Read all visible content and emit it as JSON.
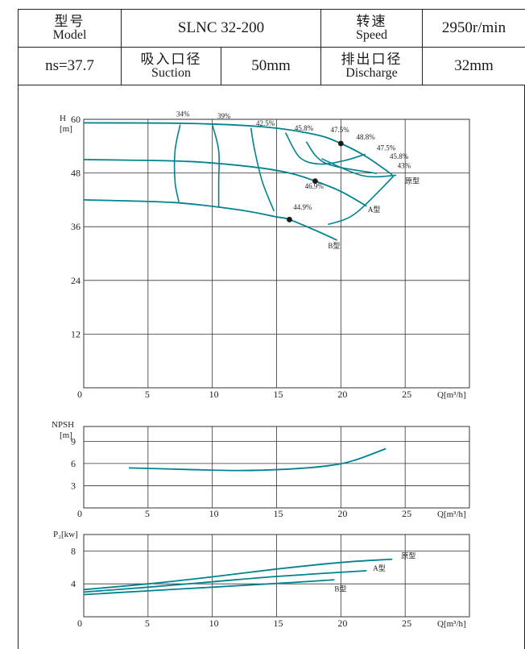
{
  "spec": {
    "model_zh": "型号",
    "model_en": "Model",
    "model_value": "SLNC 32-200",
    "speed_zh": "转速",
    "speed_en": "Speed",
    "speed_value": "2950r/min",
    "ns": "ns=37.7",
    "suction_zh": "吸入口径",
    "suction_en": "Suction",
    "suction_value": "50mm",
    "discharge_zh": "排出口径",
    "discharge_en": "Discharge",
    "discharge_value": "32mm"
  },
  "colors": {
    "curve": "#00838f",
    "grid": "#333333",
    "axis_text": "#222222"
  },
  "chart_data": [
    {
      "id": "head",
      "type": "line",
      "ylabel_lines": [
        "H",
        "[m]"
      ],
      "xlabel": "Q[m³/h]",
      "xlim": [
        0,
        30
      ],
      "ylim": [
        0,
        60
      ],
      "xticks": [
        0,
        5,
        10,
        15,
        20,
        25
      ],
      "yticks": [
        12,
        24,
        36,
        48,
        60
      ],
      "series": [
        {
          "name": "原型",
          "points": [
            [
              0,
              59.2
            ],
            [
              8,
              59.1
            ],
            [
              14,
              58.3
            ],
            [
              18,
              56.6
            ],
            [
              20,
              54.6
            ],
            [
              22,
              51.6
            ],
            [
              24,
              47.6
            ]
          ]
        },
        {
          "name": "A型",
          "points": [
            [
              0,
              51
            ],
            [
              8,
              50.6
            ],
            [
              13,
              49.4
            ],
            [
              16,
              48
            ],
            [
              18,
              46.2
            ],
            [
              20,
              43.9
            ],
            [
              22,
              40.6
            ]
          ]
        },
        {
          "name": "B型",
          "points": [
            [
              0,
              42
            ],
            [
              7,
              41.4
            ],
            [
              12,
              39.8
            ],
            [
              15,
              38.2
            ],
            [
              16,
              37.6
            ],
            [
              18,
              35.2
            ],
            [
              19.7,
              33
            ]
          ]
        }
      ],
      "iso_efficiency": [
        {
          "label": "34%",
          "points": [
            [
              7.5,
              58.8
            ],
            [
              7.1,
              53
            ],
            [
              7.1,
              46
            ],
            [
              7.4,
              41.5
            ]
          ]
        },
        {
          "label": "39%",
          "points": [
            [
              10,
              58.8
            ],
            [
              10.5,
              53
            ],
            [
              10.5,
              46
            ],
            [
              10.5,
              40.5
            ]
          ]
        },
        {
          "label": "42.5%",
          "points": [
            [
              13,
              58.1
            ],
            [
              13.3,
              53
            ],
            [
              13.9,
              46
            ],
            [
              14.8,
              39.5
            ]
          ]
        },
        {
          "label": "45.8%",
          "points": [
            [
              18.5,
              51.2
            ],
            [
              21.7,
              47.4
            ],
            [
              24.3,
              47.5
            ]
          ]
        },
        {
          "label": "47.5%",
          "points": [
            [
              17.3,
              55
            ],
            [
              18.8,
              50.2
            ],
            [
              22.8,
              47.9
            ]
          ]
        },
        {
          "label": "43%",
          "points": [
            [
              19,
              36.5
            ],
            [
              21.1,
              38.9
            ],
            [
              24.1,
              47.3
            ]
          ]
        },
        {
          "label": "47.5%",
          "points": [
            [
              15.7,
              57
            ],
            [
              16.8,
              51.5
            ],
            [
              18.4,
              50
            ],
            [
              20.3,
              50.8
            ],
            [
              21.9,
              52.2
            ]
          ]
        }
      ],
      "bep": [
        {
          "label": "48.8%",
          "x": 20,
          "y": 54.6
        },
        {
          "label": "46.9%",
          "x": 18,
          "y": 46.2
        },
        {
          "label": "44.9%",
          "x": 16,
          "y": 37.6
        }
      ],
      "labels": [
        {
          "text": "34%",
          "x": 7.2,
          "y": 60.6
        },
        {
          "text": "39%",
          "x": 10.4,
          "y": 60.2
        },
        {
          "text": "42.5%",
          "x": 13.4,
          "y": 58.6
        },
        {
          "text": "45.8%",
          "x": 16.4,
          "y": 57.5
        },
        {
          "text": "47.5%",
          "x": 19.2,
          "y": 57.1
        },
        {
          "text": "48.8%",
          "x": 21.2,
          "y": 55.5
        },
        {
          "text": "47.5%",
          "x": 22.8,
          "y": 53.1
        },
        {
          "text": "45.8%",
          "x": 23.8,
          "y": 51.2
        },
        {
          "text": "43%",
          "x": 24.4,
          "y": 49.1
        },
        {
          "text": "原型",
          "x": 25,
          "y": 45.7
        },
        {
          "text": "46.9%",
          "x": 17.2,
          "y": 44.5
        },
        {
          "text": "A型",
          "x": 22.1,
          "y": 39.3
        },
        {
          "text": "44.9%",
          "x": 16.3,
          "y": 39.8
        },
        {
          "text": "B型",
          "x": 19,
          "y": 31.2
        }
      ]
    },
    {
      "id": "npsh",
      "type": "line",
      "ylabel_lines": [
        "NPSH",
        "[m]"
      ],
      "xlabel": "Q[m³/h]",
      "xlim": [
        0,
        30
      ],
      "ylim": [
        0,
        11
      ],
      "xticks": [
        0,
        5,
        10,
        15,
        20,
        25
      ],
      "yticks": [
        3,
        6,
        9
      ],
      "series": [
        {
          "name": "NPSH",
          "points": [
            [
              3.5,
              5.4
            ],
            [
              8,
              5.2
            ],
            [
              12,
              5.05
            ],
            [
              16,
              5.25
            ],
            [
              19,
              5.7
            ],
            [
              21,
              6.4
            ],
            [
              23.5,
              8
            ]
          ]
        }
      ],
      "labels": []
    },
    {
      "id": "power",
      "type": "line",
      "ylabel_lines": [
        "P₂[kw]"
      ],
      "xlabel": "Q[m³/h]",
      "xlim": [
        0,
        30
      ],
      "ylim": [
        0,
        10
      ],
      "xticks": [
        0,
        5,
        10,
        15,
        20,
        25
      ],
      "yticks": [
        4,
        8
      ],
      "series": [
        {
          "name": "原型",
          "points": [
            [
              0,
              3.3
            ],
            [
              5,
              4
            ],
            [
              10,
              4.85
            ],
            [
              15,
              5.8
            ],
            [
              20,
              6.6
            ],
            [
              24,
              7
            ]
          ]
        },
        {
          "name": "A型",
          "points": [
            [
              0,
              3
            ],
            [
              5,
              3.6
            ],
            [
              10,
              4.25
            ],
            [
              15,
              4.9
            ],
            [
              22,
              5.6
            ]
          ]
        },
        {
          "name": "B型",
          "points": [
            [
              0,
              2.7
            ],
            [
              5,
              3.15
            ],
            [
              10,
              3.6
            ],
            [
              15,
              4.05
            ],
            [
              19.5,
              4.5
            ]
          ]
        }
      ],
      "labels": [
        {
          "text": "原型",
          "x": 24.7,
          "y": 7.1
        },
        {
          "text": "A型",
          "x": 22.5,
          "y": 5.6
        },
        {
          "text": "B型",
          "x": 19.5,
          "y": 3.1
        }
      ]
    }
  ]
}
